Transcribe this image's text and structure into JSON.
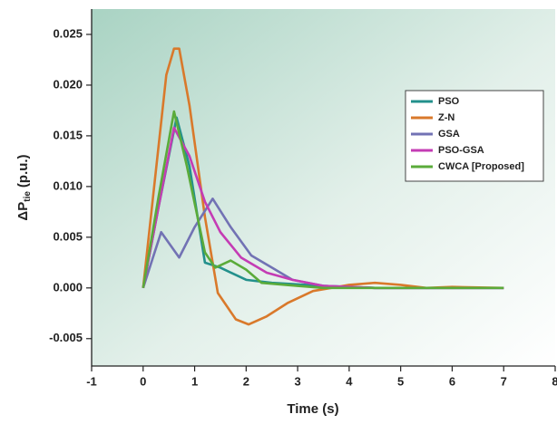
{
  "chart_data": {
    "type": "line",
    "x_label": "Time (s)",
    "y_label": {
      "main": "ΔP",
      "sub": "tie",
      "unit": "(p.u.)"
    },
    "xlim": [
      -1,
      8
    ],
    "xticks": [
      -1,
      0,
      1,
      2,
      3,
      4,
      5,
      6,
      7,
      8
    ],
    "ylim": [
      -0.0077,
      0.0275
    ],
    "yticks": [
      -0.005,
      {
        "value": 0,
        "label": "0.000"
      },
      0.005,
      {
        "value": 0.01,
        "label": "0.010"
      },
      0.015,
      {
        "value": 0.02,
        "label": "0.020"
      },
      0.025
    ],
    "legend": "upper right",
    "series": [
      {
        "name": "PSO",
        "color": "#23908c",
        "x": [
          0,
          0.3,
          0.65,
          0.9,
          1.2,
          1.5,
          2.0,
          2.5,
          3.5,
          4.5,
          7.0
        ],
        "values": [
          0,
          0.008,
          0.0168,
          0.012,
          0.0025,
          0.002,
          0.0008,
          0.0005,
          0.0002,
          0,
          0
        ]
      },
      {
        "name": "Z-N",
        "color": "#d9792b",
        "x": [
          0,
          0.45,
          0.6,
          0.7,
          0.9,
          1.2,
          1.45,
          1.8,
          2.05,
          2.4,
          2.8,
          3.3,
          4.0,
          4.5,
          5.0,
          5.5,
          6.0,
          7.0
        ],
        "values": [
          0,
          0.021,
          0.0236,
          0.0236,
          0.018,
          0.007,
          -0.0005,
          -0.0031,
          -0.0036,
          -0.0028,
          -0.0015,
          -0.0003,
          0.0003,
          0.0005,
          0.0003,
          0,
          0.0001,
          0
        ]
      },
      {
        "name": "GSA",
        "color": "#7272b4",
        "x": [
          0,
          0.35,
          0.7,
          1.0,
          1.35,
          1.7,
          2.1,
          2.5,
          2.9,
          3.5,
          4.5,
          7.0
        ],
        "values": [
          0,
          0.0055,
          0.003,
          0.006,
          0.0088,
          0.006,
          0.0032,
          0.002,
          0.0008,
          0.0002,
          0,
          0
        ]
      },
      {
        "name": "PSO-GSA",
        "color": "#c43cb4",
        "x": [
          0,
          0.3,
          0.6,
          0.9,
          1.2,
          1.5,
          1.9,
          2.4,
          2.9,
          3.5,
          4.5,
          7.0
        ],
        "values": [
          0,
          0.008,
          0.0158,
          0.013,
          0.0085,
          0.0055,
          0.003,
          0.0015,
          0.0008,
          0.0002,
          0,
          0
        ]
      },
      {
        "name": "CWCA [Proposed]",
        "color": "#5aab3a",
        "x": [
          0,
          0.3,
          0.6,
          0.85,
          1.2,
          1.4,
          1.7,
          2.0,
          2.3,
          3.0,
          3.5,
          7.0
        ],
        "values": [
          0,
          0.009,
          0.0174,
          0.012,
          0.0035,
          0.002,
          0.0027,
          0.0018,
          0.0005,
          0.0002,
          0,
          0
        ]
      }
    ]
  }
}
